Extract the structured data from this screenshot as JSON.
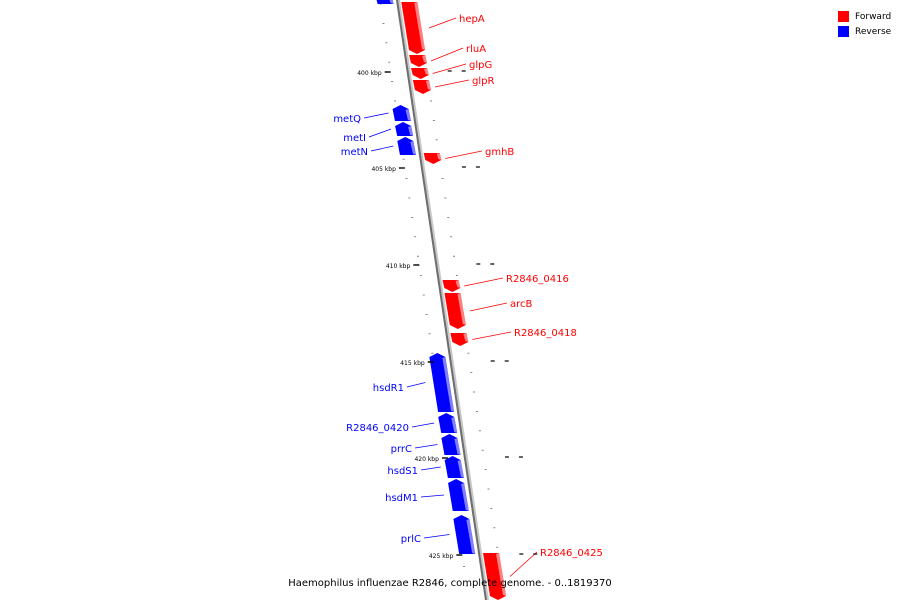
{
  "legend": {
    "forward_label": "Forward",
    "reverse_label": "Reverse",
    "forward_color": "#ff0000",
    "reverse_color": "#0000ff"
  },
  "caption": "Haemophilus influenzae R2846, complete genome. - 0..1819370",
  "scale_labels": [
    "400 kbp",
    "405 kbp",
    "410 kbp",
    "415 kbp",
    "420 kbp",
    "425 kbp"
  ],
  "genes": [
    {
      "name": "",
      "strand": "reverse"
    },
    {
      "name": "hepA",
      "strand": "forward"
    },
    {
      "name": "rluA",
      "strand": "forward"
    },
    {
      "name": "glpG",
      "strand": "forward"
    },
    {
      "name": "glpR",
      "strand": "forward"
    },
    {
      "name": "metQ",
      "strand": "reverse"
    },
    {
      "name": "metI",
      "strand": "reverse"
    },
    {
      "name": "metN",
      "strand": "reverse"
    },
    {
      "name": "gmhB",
      "strand": "forward"
    },
    {
      "name": "R2846_0416",
      "strand": "forward"
    },
    {
      "name": "arcB",
      "strand": "forward"
    },
    {
      "name": "R2846_0418",
      "strand": "forward"
    },
    {
      "name": "hsdR1",
      "strand": "reverse"
    },
    {
      "name": "R2846_0420",
      "strand": "reverse"
    },
    {
      "name": "prrC",
      "strand": "reverse"
    },
    {
      "name": "hsdS1",
      "strand": "reverse"
    },
    {
      "name": "hsdM1",
      "strand": "reverse"
    },
    {
      "name": "prlC",
      "strand": "reverse"
    },
    {
      "name": "R2846_0425",
      "strand": "forward"
    }
  ]
}
